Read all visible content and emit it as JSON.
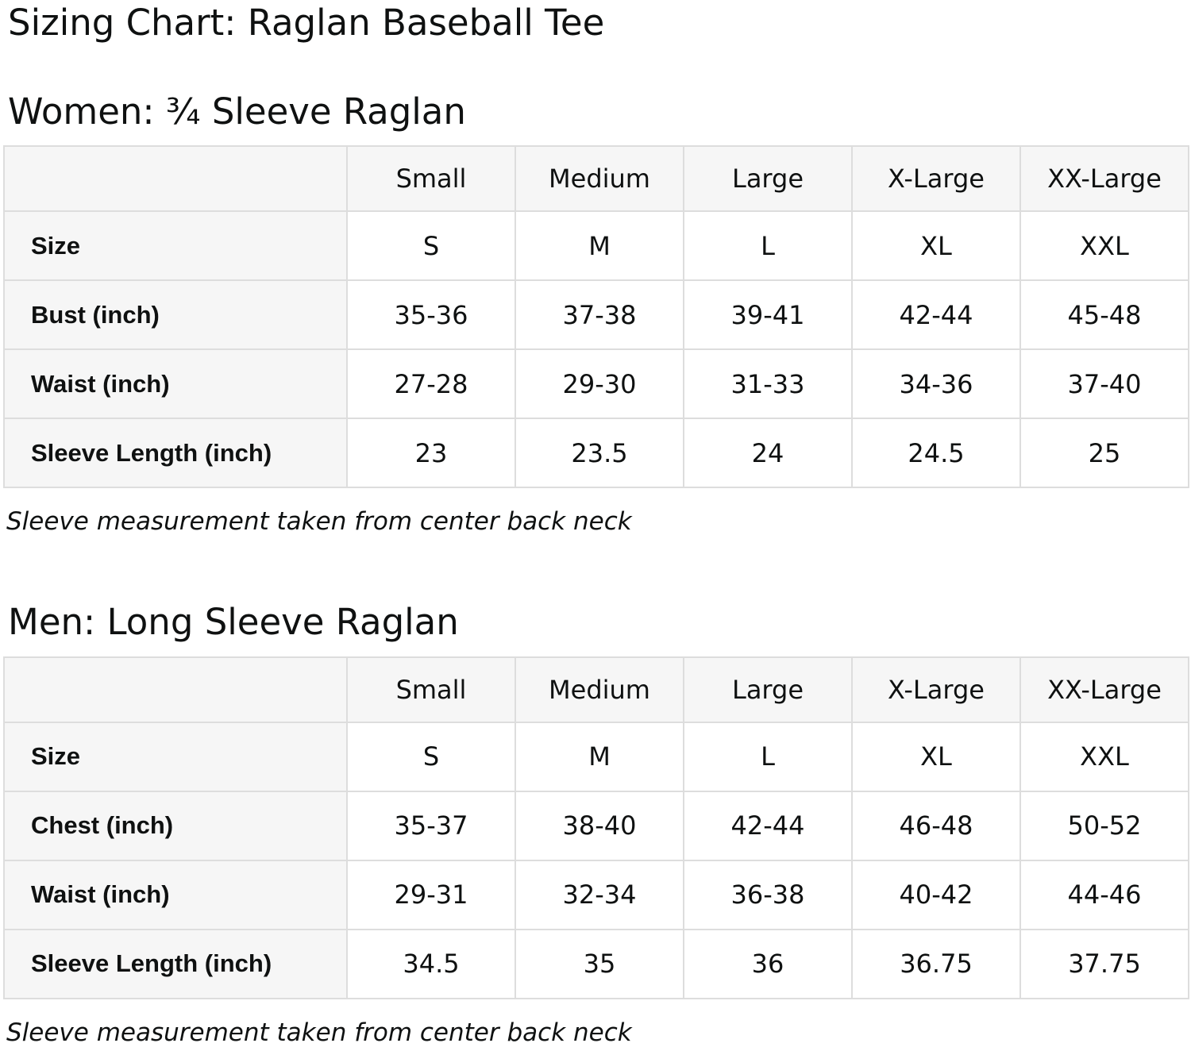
{
  "page": {
    "title": "Sizing Chart: Raglan Baseball Tee"
  },
  "sections": [
    {
      "heading": "Women: ¾ Sleeve Raglan",
      "columns": [
        "",
        "Small",
        "Medium",
        "Large",
        "X-Large",
        "XX-Large"
      ],
      "rows": [
        {
          "label": "Size",
          "values": [
            "S",
            "M",
            "L",
            "XL",
            "XXL"
          ]
        },
        {
          "label": "Bust (inch)",
          "values": [
            "35-36",
            "37-38",
            "39-41",
            "42-44",
            "45-48"
          ]
        },
        {
          "label": "Waist (inch)",
          "values": [
            "27-28",
            "29-30",
            "31-33",
            "34-36",
            "37-40"
          ]
        },
        {
          "label": "Sleeve Length (inch)",
          "values": [
            "23",
            "23.5",
            "24",
            "24.5",
            "25"
          ]
        }
      ],
      "note": "Sleeve measurement taken from center back neck"
    },
    {
      "heading": "Men: Long Sleeve Raglan",
      "columns": [
        "",
        "Small",
        "Medium",
        "Large",
        "X-Large",
        "XX-Large"
      ],
      "rows": [
        {
          "label": "Size",
          "values": [
            "S",
            "M",
            "L",
            "XL",
            "XXL"
          ]
        },
        {
          "label": "Chest (inch)",
          "values": [
            "35-37",
            "38-40",
            "42-44",
            "46-48",
            "50-52"
          ]
        },
        {
          "label": "Waist (inch)",
          "values": [
            "29-31",
            "32-34",
            "36-38",
            "40-42",
            "44-46"
          ]
        },
        {
          "label": "Sleeve Length (inch)",
          "values": [
            "34.5",
            "35",
            "36",
            "36.75",
            "37.75"
          ]
        }
      ],
      "note": "Sleeve measurement taken from center back neck"
    }
  ]
}
